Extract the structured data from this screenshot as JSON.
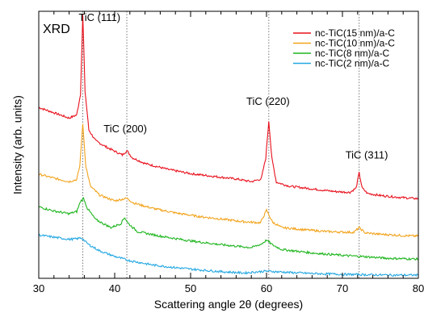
{
  "chart_data": {
    "type": "line",
    "title": "",
    "panel_label": "XRD",
    "xlabel": "Scattering angle 2θ (degrees)",
    "ylabel": "Intensity (arb. units)",
    "xlim": [
      30,
      80
    ],
    "xticks": [
      "30",
      "40",
      "50",
      "60",
      "70",
      "80"
    ],
    "y_tick_labels": false,
    "grid": false,
    "legend_position": "top-right",
    "reference_lines": [
      35.8,
      41.6,
      60.3,
      72.2
    ],
    "peak_labels": [
      {
        "text": "TiC (111)",
        "x": 38.0,
        "y": 0.964
      },
      {
        "text": "TiC (200)",
        "x": 41.4,
        "y": 0.547
      },
      {
        "text": "TiC (220)",
        "x": 60.2,
        "y": 0.65
      },
      {
        "text": "TiC (311)",
        "x": 73.2,
        "y": 0.448
      }
    ],
    "series": [
      {
        "name": "nc-TiC(15 nm)/a-C",
        "color": "#e8101c",
        "x": [
          30,
          32,
          34,
          35.0,
          35.5,
          35.8,
          36.1,
          36.6,
          37.5,
          39,
          41,
          41.6,
          42.3,
          44,
          47,
          50,
          53,
          56,
          58,
          59.3,
          59.9,
          60.3,
          60.7,
          61.3,
          63,
          66,
          69,
          71,
          71.8,
          72.2,
          72.6,
          73.3,
          75,
          78,
          80
        ],
        "values": [
          0.64,
          0.62,
          0.6,
          0.612,
          0.69,
          0.985,
          0.7,
          0.555,
          0.515,
          0.49,
          0.462,
          0.478,
          0.452,
          0.43,
          0.408,
          0.392,
          0.382,
          0.372,
          0.362,
          0.372,
          0.45,
          0.59,
          0.45,
          0.36,
          0.345,
          0.335,
          0.325,
          0.322,
          0.338,
          0.395,
          0.338,
          0.318,
          0.31,
          0.302,
          0.298
        ]
      },
      {
        "name": "nc-TiC(10 nm)/a-C",
        "color": "#f2a31b",
        "x": [
          30,
          32,
          34,
          35.0,
          35.4,
          35.8,
          36.2,
          36.8,
          38,
          40,
          41.6,
          42.5,
          45,
          48,
          51,
          54,
          57,
          59.2,
          60.0,
          60.8,
          62,
          65,
          68,
          71.5,
          72.2,
          73.0,
          75,
          78,
          80
        ],
        "values": [
          0.39,
          0.375,
          0.362,
          0.37,
          0.42,
          0.578,
          0.42,
          0.345,
          0.312,
          0.29,
          0.3,
          0.282,
          0.262,
          0.245,
          0.232,
          0.222,
          0.212,
          0.208,
          0.255,
          0.21,
          0.19,
          0.182,
          0.175,
          0.172,
          0.19,
          0.17,
          0.165,
          0.16,
          0.158
        ]
      },
      {
        "name": "nc-TiC(8 nm)/a-C",
        "color": "#1eb51e",
        "x": [
          30,
          32,
          34,
          35.0,
          35.5,
          35.9,
          36.4,
          37.5,
          39.5,
          40.8,
          41.3,
          41.8,
          43,
          46,
          50,
          54,
          58,
          59.3,
          60.0,
          60.8,
          62,
          66,
          70,
          73,
          76,
          80
        ],
        "values": [
          0.268,
          0.252,
          0.242,
          0.25,
          0.288,
          0.3,
          0.262,
          0.22,
          0.19,
          0.205,
          0.228,
          0.205,
          0.175,
          0.158,
          0.14,
          0.126,
          0.115,
          0.128,
          0.143,
          0.125,
          0.108,
          0.095,
          0.086,
          0.081,
          0.075,
          0.072
        ]
      },
      {
        "name": "nc-TiC(2 nm)/a-C",
        "color": "#23a7e2",
        "x": [
          30,
          32,
          34,
          35.0,
          35.6,
          36.5,
          38,
          40,
          42,
          45,
          48,
          51,
          54,
          57,
          60,
          63,
          66,
          70,
          74,
          77,
          80
        ],
        "values": [
          0.162,
          0.154,
          0.146,
          0.148,
          0.152,
          0.128,
          0.103,
          0.082,
          0.066,
          0.05,
          0.04,
          0.032,
          0.025,
          0.02,
          0.027,
          0.022,
          0.018,
          0.015,
          0.013,
          0.012,
          0.012
        ]
      }
    ]
  }
}
